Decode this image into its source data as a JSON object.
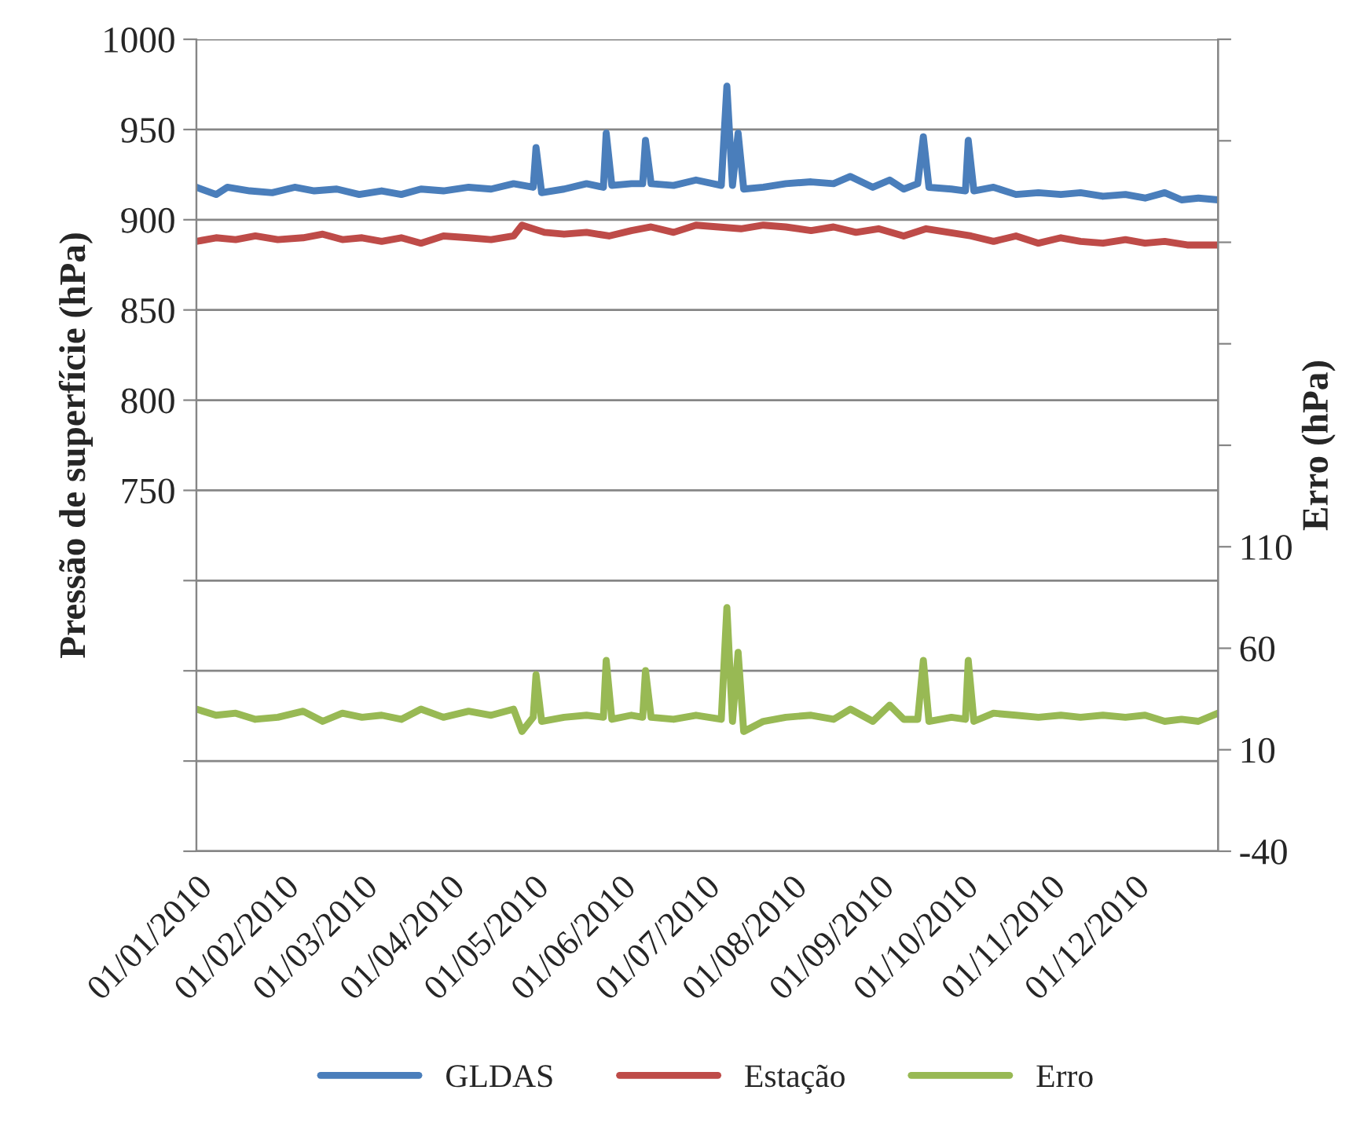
{
  "chart_data": {
    "type": "line",
    "ylabel": "Pressão de superfície (hPa)",
    "y2label": "Erro (hPa)",
    "xlim": [
      "2010-01-01",
      "2010-12-31"
    ],
    "xticks": [
      {
        "value": "2010-01-01",
        "label": "01/01/2010"
      },
      {
        "value": "2010-02-01",
        "label": "01/02/2010"
      },
      {
        "value": "2010-03-01",
        "label": "01/03/2010"
      },
      {
        "value": "2010-04-01",
        "label": "01/04/2010"
      },
      {
        "value": "2010-05-01",
        "label": "01/05/2010"
      },
      {
        "value": "2010-06-01",
        "label": "01/06/2010"
      },
      {
        "value": "2010-07-01",
        "label": "01/07/2010"
      },
      {
        "value": "2010-08-01",
        "label": "01/08/2010"
      },
      {
        "value": "2010-09-01",
        "label": "01/09/2010"
      },
      {
        "value": "2010-10-01",
        "label": "01/10/2010"
      },
      {
        "value": "2010-11-01",
        "label": "01/11/2010"
      },
      {
        "value": "2010-12-01",
        "label": "01/12/2010"
      }
    ],
    "ylim": [
      550,
      1000
    ],
    "yticks": [
      {
        "value": 550,
        "label": null
      },
      {
        "value": 600,
        "label": null
      },
      {
        "value": 650,
        "label": null
      },
      {
        "value": 700,
        "label": null
      },
      750,
      800,
      850,
      900,
      950,
      1000
    ],
    "y2lim": [
      -40,
      360
    ],
    "y2ticks": [
      -40,
      10,
      60,
      110,
      {
        "value": 160,
        "label": null
      },
      {
        "value": 210,
        "label": null
      },
      {
        "value": 260,
        "label": null
      },
      {
        "value": 310,
        "label": null
      },
      {
        "value": 360,
        "label": null
      }
    ],
    "grid": "y",
    "legend": "bottom",
    "marker": "none",
    "line_style": "solid",
    "series": [
      {
        "name": "GLDAS",
        "color": "#4a7ebb",
        "x": [
          "2010-01-01",
          "2010-01-08",
          "2010-01-12",
          "2010-01-20",
          "2010-01-28",
          "2010-02-05",
          "2010-02-12",
          "2010-02-20",
          "2010-02-28",
          "2010-03-08",
          "2010-03-15",
          "2010-03-22",
          "2010-03-30",
          "2010-04-08",
          "2010-04-16",
          "2010-04-24",
          "2010-05-01",
          "2010-05-02",
          "2010-05-04",
          "2010-05-12",
          "2010-05-20",
          "2010-05-26",
          "2010-05-27",
          "2010-05-29",
          "2010-06-05",
          "2010-06-09",
          "2010-06-10",
          "2010-06-12",
          "2010-06-20",
          "2010-06-28",
          "2010-07-07",
          "2010-07-09",
          "2010-07-11",
          "2010-07-13",
          "2010-07-15",
          "2010-07-22",
          "2010-07-30",
          "2010-08-08",
          "2010-08-16",
          "2010-08-22",
          "2010-08-30",
          "2010-09-05",
          "2010-09-10",
          "2010-09-15",
          "2010-09-17",
          "2010-09-19",
          "2010-09-27",
          "2010-10-02",
          "2010-10-03",
          "2010-10-05",
          "2010-10-12",
          "2010-10-20",
          "2010-10-28",
          "2010-11-05",
          "2010-11-12",
          "2010-11-20",
          "2010-11-28",
          "2010-12-05",
          "2010-12-12",
          "2010-12-18",
          "2010-12-24",
          "2010-12-31"
        ],
        "values": [
          918,
          914,
          918,
          916,
          915,
          918,
          916,
          917,
          914,
          916,
          914,
          917,
          916,
          918,
          917,
          920,
          918,
          940,
          915,
          917,
          920,
          918,
          948,
          919,
          920,
          920,
          944,
          920,
          919,
          922,
          919,
          974,
          919,
          948,
          917,
          918,
          920,
          921,
          920,
          924,
          918,
          922,
          917,
          920,
          946,
          918,
          917,
          916,
          944,
          916,
          918,
          914,
          915,
          914,
          915,
          913,
          914,
          912,
          915,
          911,
          912,
          911
        ]
      },
      {
        "name": "Estação",
        "color": "#be4b48",
        "x": [
          "2010-01-01",
          "2010-01-08",
          "2010-01-15",
          "2010-01-22",
          "2010-01-30",
          "2010-02-08",
          "2010-02-15",
          "2010-02-22",
          "2010-03-01",
          "2010-03-08",
          "2010-03-15",
          "2010-03-22",
          "2010-03-30",
          "2010-04-08",
          "2010-04-16",
          "2010-04-24",
          "2010-04-27",
          "2010-05-05",
          "2010-05-12",
          "2010-05-20",
          "2010-05-28",
          "2010-06-05",
          "2010-06-12",
          "2010-06-20",
          "2010-06-28",
          "2010-07-06",
          "2010-07-14",
          "2010-07-22",
          "2010-07-30",
          "2010-08-08",
          "2010-08-16",
          "2010-08-24",
          "2010-09-01",
          "2010-09-10",
          "2010-09-18",
          "2010-09-26",
          "2010-10-04",
          "2010-10-12",
          "2010-10-20",
          "2010-10-28",
          "2010-11-05",
          "2010-11-12",
          "2010-11-20",
          "2010-11-28",
          "2010-12-05",
          "2010-12-12",
          "2010-12-20",
          "2010-12-31"
        ],
        "values": [
          888,
          890,
          889,
          891,
          889,
          890,
          892,
          889,
          890,
          888,
          890,
          887,
          891,
          890,
          889,
          891,
          897,
          893,
          892,
          893,
          891,
          894,
          896,
          893,
          897,
          896,
          895,
          897,
          896,
          894,
          896,
          893,
          895,
          891,
          895,
          893,
          891,
          888,
          891,
          887,
          890,
          888,
          887,
          889,
          887,
          888,
          886,
          886
        ]
      },
      {
        "name": "Erro",
        "color": "#98b954",
        "axis": "y2",
        "x": [
          "2010-01-01",
          "2010-01-08",
          "2010-01-15",
          "2010-01-22",
          "2010-01-30",
          "2010-02-08",
          "2010-02-15",
          "2010-02-22",
          "2010-03-01",
          "2010-03-08",
          "2010-03-15",
          "2010-03-22",
          "2010-03-30",
          "2010-04-08",
          "2010-04-16",
          "2010-04-24",
          "2010-04-27",
          "2010-05-01",
          "2010-05-02",
          "2010-05-04",
          "2010-05-12",
          "2010-05-20",
          "2010-05-26",
          "2010-05-27",
          "2010-05-29",
          "2010-06-05",
          "2010-06-09",
          "2010-06-10",
          "2010-06-12",
          "2010-06-20",
          "2010-06-28",
          "2010-07-07",
          "2010-07-09",
          "2010-07-11",
          "2010-07-13",
          "2010-07-15",
          "2010-07-22",
          "2010-07-30",
          "2010-08-08",
          "2010-08-16",
          "2010-08-22",
          "2010-08-30",
          "2010-09-05",
          "2010-09-10",
          "2010-09-15",
          "2010-09-17",
          "2010-09-19",
          "2010-09-27",
          "2010-10-02",
          "2010-10-03",
          "2010-10-05",
          "2010-10-12",
          "2010-10-20",
          "2010-10-28",
          "2010-11-05",
          "2010-11-12",
          "2010-11-20",
          "2010-11-28",
          "2010-12-05",
          "2010-12-12",
          "2010-12-18",
          "2010-12-24",
          "2010-12-31"
        ],
        "values": [
          30,
          27,
          28,
          25,
          26,
          29,
          24,
          28,
          26,
          27,
          25,
          30,
          26,
          29,
          27,
          30,
          19,
          26,
          47,
          24,
          26,
          27,
          26,
          54,
          25,
          27,
          26,
          49,
          26,
          25,
          27,
          25,
          80,
          24,
          58,
          19,
          24,
          26,
          27,
          25,
          30,
          24,
          32,
          25,
          25,
          54,
          24,
          26,
          25,
          54,
          24,
          28,
          27,
          26,
          27,
          26,
          27,
          26,
          27,
          24,
          25,
          24,
          28
        ]
      }
    ]
  }
}
